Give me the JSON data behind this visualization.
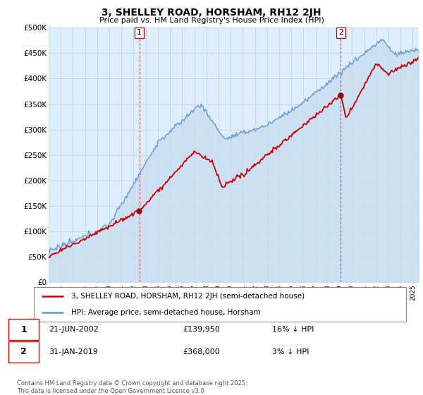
{
  "title": "3, SHELLEY ROAD, HORSHAM, RH12 2JH",
  "subtitle": "Price paid vs. HM Land Registry's House Price Index (HPI)",
  "ylabel_ticks": [
    "£0",
    "£50K",
    "£100K",
    "£150K",
    "£200K",
    "£250K",
    "£300K",
    "£350K",
    "£400K",
    "£450K",
    "£500K"
  ],
  "ytick_values": [
    0,
    50000,
    100000,
    150000,
    200000,
    250000,
    300000,
    350000,
    400000,
    450000,
    500000
  ],
  "ylim": [
    0,
    500000
  ],
  "xlim_start": 1995.0,
  "xlim_end": 2025.5,
  "plot_bg_color": "#ddeeff",
  "hpi_color": "#6699cc",
  "price_color": "#cc0000",
  "dashed_color": "#cc4444",
  "marker1_year": 2002.47,
  "marker2_year": 2019.08,
  "marker1_value": 139950,
  "marker2_value": 368000,
  "annotation1": {
    "label": "1",
    "date": "21-JUN-2002",
    "price": "£139,950",
    "pct": "16% ↓ HPI"
  },
  "annotation2": {
    "label": "2",
    "date": "31-JAN-2019",
    "price": "£368,000",
    "pct": "3% ↓ HPI"
  },
  "legend_line1": "3, SHELLEY ROAD, HORSHAM, RH12 2JH (semi-detached house)",
  "legend_line2": "HPI: Average price, semi-detached house, Horsham",
  "footer": "Contains HM Land Registry data © Crown copyright and database right 2025.\nThis data is licensed under the Open Government Licence v3.0.",
  "background_color": "#ffffff",
  "grid_color": "#cccccc"
}
